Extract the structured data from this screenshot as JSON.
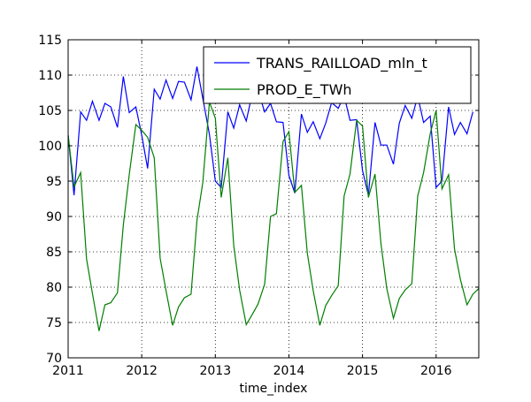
{
  "chart_data": {
    "type": "line",
    "xlabel": "time_index",
    "ylabel": "",
    "title": "",
    "xlim": [
      2011.0,
      2016.58
    ],
    "ylim": [
      70,
      115
    ],
    "xticks": [
      2011,
      2012,
      2013,
      2014,
      2015,
      2016
    ],
    "yticks": [
      70,
      75,
      80,
      85,
      90,
      95,
      100,
      105,
      110,
      115
    ],
    "grid": true,
    "legend_position": "top-right",
    "series": [
      {
        "name": "TRANS_RAILLOAD_mln_t",
        "color": "#0000ff",
        "x": [
          2011.0,
          2011.08,
          2011.17,
          2011.25,
          2011.33,
          2011.42,
          2011.5,
          2011.58,
          2011.67,
          2011.75,
          2011.83,
          2011.92,
          2012.0,
          2012.08,
          2012.17,
          2012.25,
          2012.33,
          2012.42,
          2012.5,
          2012.58,
          2012.67,
          2012.75,
          2012.83,
          2012.92,
          2013.0,
          2013.08,
          2013.17,
          2013.25,
          2013.33,
          2013.42,
          2013.5,
          2013.58,
          2013.67,
          2013.75,
          2013.83,
          2013.92,
          2014.0,
          2014.08,
          2014.17,
          2014.25,
          2014.33,
          2014.42,
          2014.5,
          2014.58,
          2014.67,
          2014.75,
          2014.83,
          2014.92,
          2015.0,
          2015.08,
          2015.17,
          2015.25,
          2015.33,
          2015.42,
          2015.5,
          2015.58,
          2015.67,
          2015.75,
          2015.83,
          2015.92,
          2016.0,
          2016.08,
          2016.17,
          2016.25,
          2016.33,
          2016.42,
          2016.5
        ],
        "values": [
          101.5,
          93.0,
          104.8,
          103.6,
          106.3,
          103.6,
          106.0,
          105.5,
          102.6,
          109.8,
          104.7,
          105.5,
          101.5,
          96.8,
          108.0,
          106.6,
          109.3,
          106.7,
          109.1,
          109.0,
          106.5,
          111.2,
          106.7,
          101.6,
          95.0,
          94.1,
          104.8,
          102.5,
          105.8,
          103.5,
          107.3,
          107.8,
          104.8,
          106.0,
          103.4,
          103.3,
          95.8,
          93.3,
          104.5,
          101.9,
          103.4,
          101.0,
          103.2,
          106.1,
          105.3,
          107.1,
          103.6,
          103.7,
          96.5,
          93.0,
          103.3,
          100.1,
          100.1,
          97.4,
          103.2,
          105.7,
          103.9,
          107.0,
          103.3,
          104.2,
          94.1,
          95.0,
          105.5,
          101.6,
          103.3,
          101.7,
          104.8
        ]
      },
      {
        "name": "PROD_E_TWh",
        "color": "#007f00",
        "x": [
          2011.0,
          2011.08,
          2011.17,
          2011.25,
          2011.33,
          2011.42,
          2011.5,
          2011.58,
          2011.67,
          2011.75,
          2011.83,
          2011.92,
          2012.0,
          2012.08,
          2012.17,
          2012.25,
          2012.33,
          2012.42,
          2012.5,
          2012.58,
          2012.67,
          2012.75,
          2012.83,
          2012.92,
          2013.0,
          2013.08,
          2013.17,
          2013.25,
          2013.33,
          2013.42,
          2013.5,
          2013.58,
          2013.67,
          2013.75,
          2013.83,
          2013.92,
          2014.0,
          2014.08,
          2014.17,
          2014.25,
          2014.33,
          2014.42,
          2014.5,
          2014.58,
          2014.67,
          2014.75,
          2014.83,
          2014.92,
          2015.0,
          2015.08,
          2015.17,
          2015.25,
          2015.33,
          2015.42,
          2015.5,
          2015.58,
          2015.67,
          2015.75,
          2015.83,
          2015.92,
          2016.0,
          2016.08,
          2016.17,
          2016.25,
          2016.33,
          2016.42,
          2016.5,
          2016.58
        ],
        "values": [
          101.5,
          94.2,
          96.2,
          84.0,
          79.1,
          73.8,
          77.5,
          77.8,
          79.2,
          88.8,
          95.9,
          103.0,
          102.2,
          101.2,
          98.3,
          84.1,
          79.5,
          74.6,
          77.2,
          78.5,
          79.0,
          89.4,
          94.8,
          106.2,
          103.9,
          92.7,
          98.3,
          85.9,
          79.6,
          74.7,
          76.1,
          77.6,
          80.4,
          90.0,
          90.4,
          100.6,
          102.0,
          93.4,
          94.4,
          84.8,
          79.5,
          74.6,
          77.4,
          78.8,
          80.2,
          92.9,
          96.0,
          103.6,
          102.8,
          92.7,
          96.0,
          86.2,
          79.8,
          75.6,
          78.4,
          79.6,
          80.5,
          92.9,
          96.2,
          101.7,
          105.0,
          93.9,
          95.9,
          85.4,
          81.1,
          77.5,
          79.0,
          79.8
        ]
      }
    ]
  }
}
